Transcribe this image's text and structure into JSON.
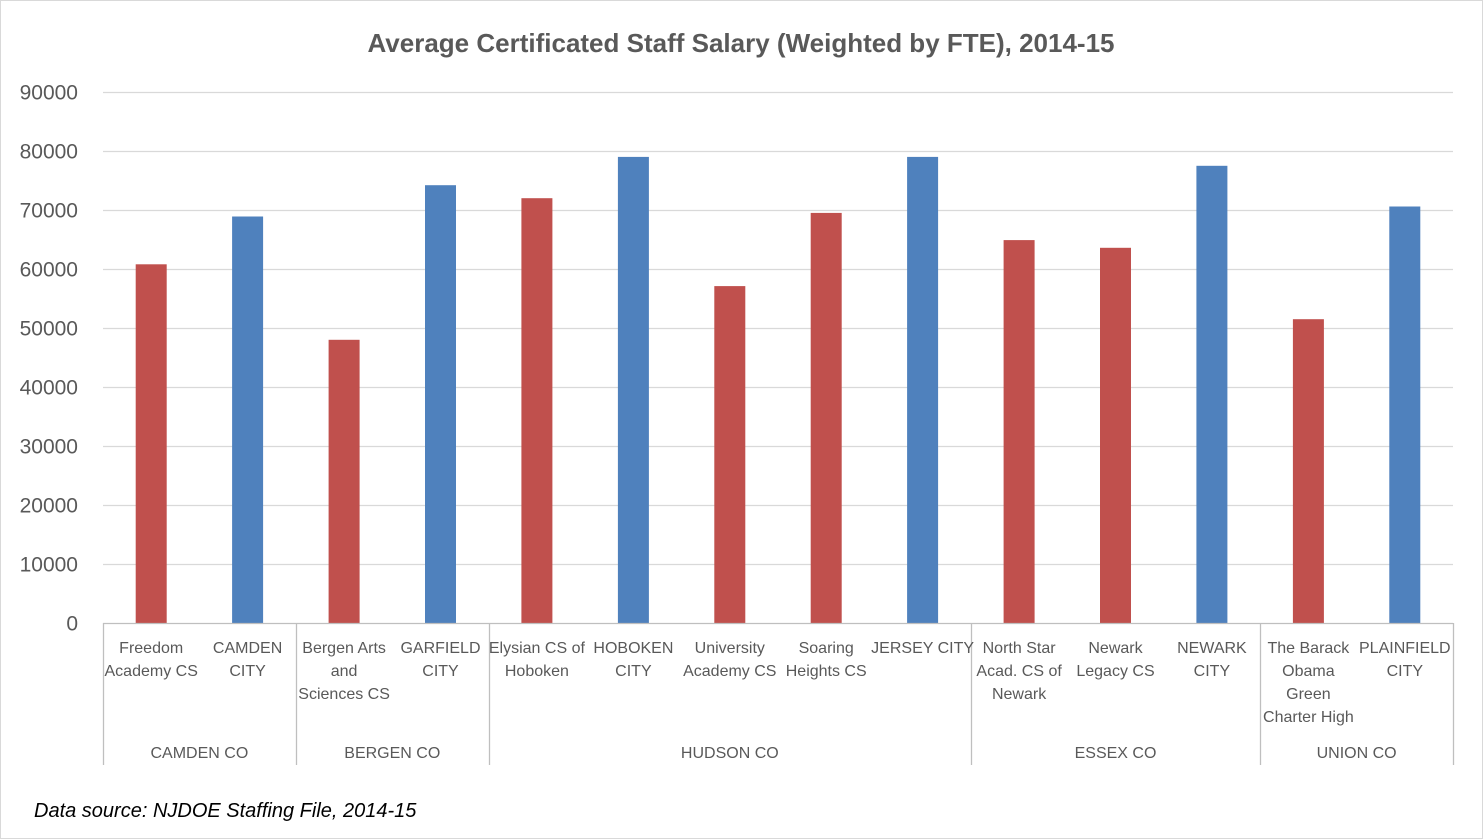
{
  "chart_data": {
    "type": "bar",
    "title": "Average Certificated Staff Salary (Weighted by FTE), 2014-15",
    "xlabel": "",
    "ylabel": "",
    "ylim": [
      0,
      90000
    ],
    "yticks": [
      "0",
      "10000",
      "20000",
      "30000",
      "40000",
      "50000",
      "60000",
      "70000",
      "80000",
      "90000"
    ],
    "grid": true,
    "legend": "none",
    "colors": {
      "charter": "#c0504d",
      "district": "#4f81bd",
      "grid": "#d9d9d9",
      "axis": "#bfbfbf"
    },
    "categories": [
      {
        "label": [
          "Freedom",
          "Academy CS"
        ],
        "group": "CAMDEN CO",
        "kind": "charter",
        "value": 60800
      },
      {
        "label": [
          "CAMDEN",
          "CITY"
        ],
        "group": "CAMDEN CO",
        "kind": "district",
        "value": 68900
      },
      {
        "label": [
          "Bergen Arts",
          "and",
          "Sciences CS"
        ],
        "group": "BERGEN CO",
        "kind": "charter",
        "value": 48000
      },
      {
        "label": [
          "GARFIELD",
          "CITY"
        ],
        "group": "BERGEN CO",
        "kind": "district",
        "value": 74200
      },
      {
        "label": [
          "Elysian CS of",
          "Hoboken"
        ],
        "group": "HUDSON CO",
        "kind": "charter",
        "value": 72000
      },
      {
        "label": [
          "HOBOKEN",
          "CITY"
        ],
        "group": "HUDSON CO",
        "kind": "district",
        "value": 79000
      },
      {
        "label": [
          "University",
          "Academy CS"
        ],
        "group": "HUDSON CO",
        "kind": "charter",
        "value": 57100
      },
      {
        "label": [
          "Soaring",
          "Heights CS"
        ],
        "group": "HUDSON CO",
        "kind": "charter",
        "value": 69500
      },
      {
        "label": [
          "JERSEY CITY"
        ],
        "group": "HUDSON CO",
        "kind": "district",
        "value": 79000
      },
      {
        "label": [
          "North Star",
          "Acad. CS of",
          "Newark"
        ],
        "group": "ESSEX CO",
        "kind": "charter",
        "value": 64900
      },
      {
        "label": [
          "Newark",
          "Legacy CS"
        ],
        "group": "ESSEX CO",
        "kind": "charter",
        "value": 63600
      },
      {
        "label": [
          "NEWARK",
          "CITY"
        ],
        "group": "ESSEX CO",
        "kind": "district",
        "value": 77500
      },
      {
        "label": [
          "The Barack",
          "Obama",
          "Green",
          "Charter High"
        ],
        "group": "UNION CO",
        "kind": "charter",
        "value": 51500
      },
      {
        "label": [
          "PLAINFIELD",
          "CITY"
        ],
        "group": "UNION CO",
        "kind": "district",
        "value": 70600
      }
    ],
    "groups": [
      "CAMDEN CO",
      "BERGEN CO",
      "HUDSON CO",
      "ESSEX CO",
      "UNION CO"
    ]
  },
  "footer": {
    "source": "Data source: NJDOE Staffing File, 2014-15"
  }
}
